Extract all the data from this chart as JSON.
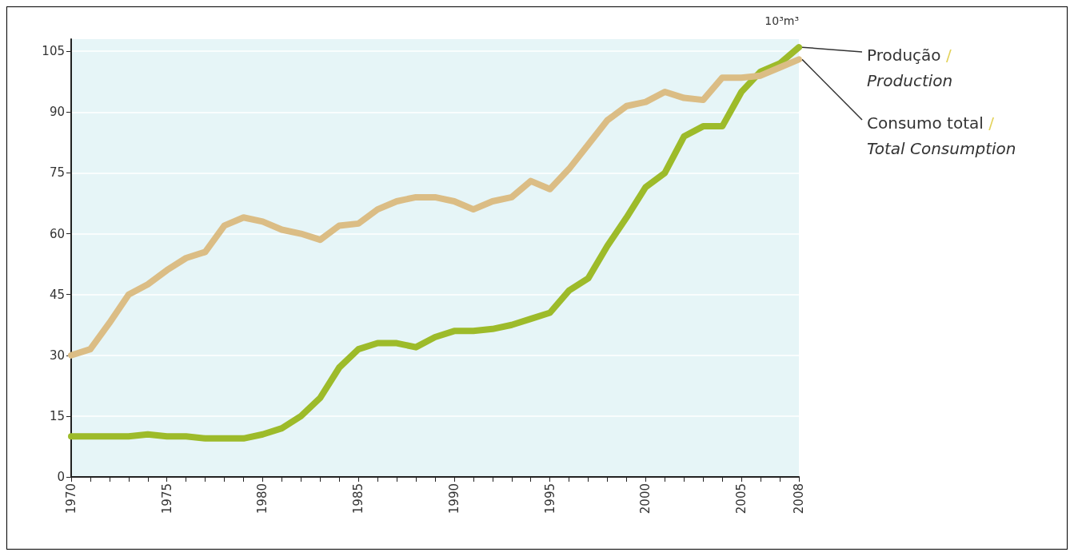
{
  "chart_data": {
    "type": "line",
    "ylabel": "10³m³",
    "x": [
      1970,
      1971,
      1972,
      1973,
      1974,
      1975,
      1976,
      1977,
      1978,
      1979,
      1980,
      1981,
      1982,
      1983,
      1984,
      1985,
      1986,
      1987,
      1988,
      1989,
      1990,
      1991,
      1992,
      1993,
      1994,
      1995,
      1996,
      1997,
      1998,
      1999,
      2000,
      2001,
      2002,
      2003,
      2004,
      2005,
      2006,
      2007,
      2008
    ],
    "series": [
      {
        "name": "Produção / Production",
        "color": "#9dbb2a",
        "values": [
          10,
          10,
          10,
          10,
          10.5,
          10,
          10,
          9.5,
          9.5,
          9.5,
          10.5,
          12,
          15,
          19.5,
          27,
          31.5,
          33,
          33,
          32,
          34.5,
          36,
          36,
          36.5,
          37.5,
          39,
          40.5,
          46,
          49,
          57,
          64,
          71.5,
          75,
          84,
          86.5,
          86.5,
          95,
          100,
          102,
          106
        ]
      },
      {
        "name": "Consumo total / Total Consumption",
        "color": "#dbbd85",
        "values": [
          30,
          31.5,
          38,
          45,
          47.5,
          51,
          54,
          55.5,
          62,
          64,
          63,
          61,
          60,
          58.5,
          62,
          62.5,
          66,
          68,
          69,
          69,
          68,
          66,
          68,
          69,
          73,
          71,
          76,
          82,
          88,
          91.5,
          92.5,
          95,
          93.5,
          93,
          98.5,
          98.5,
          99,
          101,
          103
        ]
      }
    ],
    "xlim": [
      1970,
      2008
    ],
    "xticks": [
      1970,
      {
        "value": 1971,
        "label": null
      },
      {
        "value": 1972,
        "label": null
      },
      {
        "value": 1973,
        "label": null
      },
      {
        "value": 1974,
        "label": null
      },
      1975,
      {
        "value": 1976,
        "label": null
      },
      {
        "value": 1977,
        "label": null
      },
      {
        "value": 1978,
        "label": null
      },
      {
        "value": 1979,
        "label": null
      },
      1980,
      {
        "value": 1981,
        "label": null
      },
      {
        "value": 1982,
        "label": null
      },
      {
        "value": 1983,
        "label": null
      },
      {
        "value": 1984,
        "label": null
      },
      1985,
      {
        "value": 1986,
        "label": null
      },
      {
        "value": 1987,
        "label": null
      },
      {
        "value": 1988,
        "label": null
      },
      {
        "value": 1989,
        "label": null
      },
      1990,
      {
        "value": 1991,
        "label": null
      },
      {
        "value": 1992,
        "label": null
      },
      {
        "value": 1993,
        "label": null
      },
      {
        "value": 1994,
        "label": null
      },
      1995,
      {
        "value": 1996,
        "label": null
      },
      {
        "value": 1997,
        "label": null
      },
      {
        "value": 1998,
        "label": null
      },
      {
        "value": 1999,
        "label": null
      },
      2000,
      {
        "value": 2001,
        "label": null
      },
      {
        "value": 2002,
        "label": null
      },
      {
        "value": 2003,
        "label": null
      },
      {
        "value": 2004,
        "label": null
      },
      2005,
      {
        "value": 2006,
        "label": null
      },
      {
        "value": 2007,
        "label": null
      },
      2008
    ],
    "ylim": [
      0,
      108
    ],
    "yticks": [
      0,
      15,
      30,
      45,
      60,
      75,
      90,
      105
    ],
    "grid": "y",
    "line_style": "solid",
    "marker": "none",
    "legend": false
  }
}
